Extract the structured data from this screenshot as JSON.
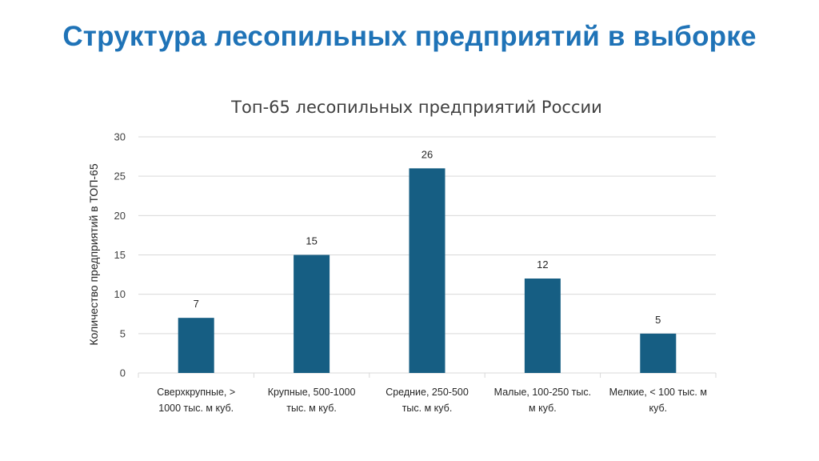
{
  "slide": {
    "title": "Структура лесопильных предприятий в выборке"
  },
  "colors": {
    "title": "#1f73b7",
    "bar": "#165e83",
    "grid": "#d9d9d9"
  },
  "chart_data": {
    "type": "bar",
    "title": "Топ-65 лесопильных предприятий России",
    "xlabel": "",
    "ylabel": "Количество предприятий в ТОП-65",
    "categories": [
      [
        "Сверхкрупные, >",
        "1000 тыс. м куб."
      ],
      [
        "Крупные,  500-1000",
        "тыс. м куб."
      ],
      [
        "Средние,  250-500",
        "тыс. м куб."
      ],
      [
        "Малые, 100-250 тыс.",
        "м куб."
      ],
      [
        "Мелкие, < 100 тыс. м",
        "куб."
      ]
    ],
    "values": [
      7,
      15,
      26,
      12,
      5
    ],
    "data_labels": [
      "7",
      "15",
      "26",
      "12",
      "5"
    ],
    "ylim": [
      0,
      30
    ],
    "yticks": [
      0,
      5,
      10,
      15,
      20,
      25,
      30
    ],
    "grid": true,
    "legend": "none"
  }
}
